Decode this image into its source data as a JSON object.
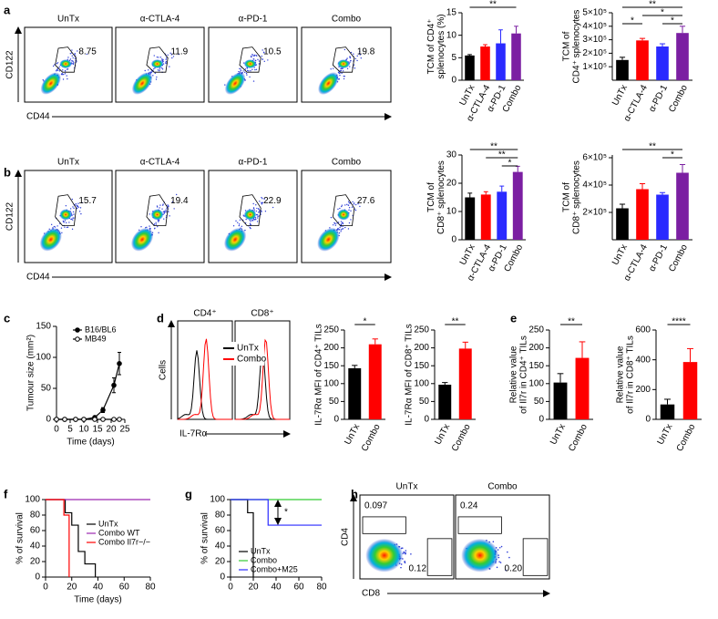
{
  "chart_data": [
    {
      "type": "flow",
      "panel": "a",
      "titles": [
        "UnTx",
        "α-CTLA-4",
        "α-PD-1",
        "Combo"
      ],
      "gates": [
        "8.75",
        "11.9",
        "10.5",
        "19.8"
      ],
      "ylabel": "CD122",
      "xlabel": "CD44"
    },
    {
      "type": "bar",
      "categories": [
        "UnTx",
        "α-CTLA-4",
        "α-PD-1",
        "Combo"
      ],
      "values": [
        5.5,
        7.5,
        8.2,
        10.4
      ],
      "errors": [
        0.2,
        0.4,
        3.0,
        1.6
      ],
      "colors": [
        "#000000",
        "#ff0000",
        "#2a2aff",
        "#7b1fa2"
      ],
      "ylim": [
        0,
        15
      ],
      "yticks": [
        0,
        5,
        10,
        15
      ],
      "ylabel": [
        "TCM of CD4⁺",
        "splenocytes (%)"
      ],
      "significance": [
        "**"
      ]
    },
    {
      "type": "bar",
      "categories": [
        "UnTx",
        "α-CTLA-4",
        "α-PD-1",
        "Combo"
      ],
      "values": [
        150000,
        295000,
        250000,
        350000
      ],
      "errors": [
        20000,
        15000,
        20000,
        50000
      ],
      "colors": [
        "#000000",
        "#ff0000",
        "#2a2aff",
        "#7b1fa2"
      ],
      "ylim": [
        0,
        500000
      ],
      "yticks": [
        {
          "value": 100000,
          "label": "1×10⁵"
        },
        {
          "value": 200000,
          "label": "2×10⁵"
        },
        {
          "value": 300000,
          "label": "3×10⁵"
        },
        {
          "value": 400000,
          "label": "4×10⁵"
        },
        {
          "value": 500000,
          "label": "5×10⁵"
        }
      ],
      "ylabel": [
        "TCM of",
        "CD4⁺ splenocytes"
      ],
      "significance": [
        "**",
        "*",
        "*",
        "*"
      ]
    },
    {
      "type": "flow",
      "panel": "b",
      "titles": [
        "UnTx",
        "α-CTLA-4",
        "α-PD-1",
        "Combo"
      ],
      "gates": [
        "15.7",
        "19.4",
        "22.9",
        "27.6"
      ],
      "ylabel": "CD122",
      "xlabel": "CD44"
    },
    {
      "type": "bar",
      "categories": [
        "UnTx",
        "α-CTLA-4",
        "α-PD-1",
        "Combo"
      ],
      "values": [
        15,
        16,
        17,
        24
      ],
      "errors": [
        1.5,
        1,
        2,
        2
      ],
      "colors": [
        "#000000",
        "#ff0000",
        "#2a2aff",
        "#7b1fa2"
      ],
      "ylim": [
        0,
        30
      ],
      "yticks": [
        0,
        10,
        20,
        30
      ],
      "ylabel": [
        "TCM of",
        "CD8⁺ splenocytes"
      ],
      "significance": [
        "**",
        "**",
        "*"
      ]
    },
    {
      "type": "bar",
      "categories": [
        "UnTx",
        "α-CTLA-4",
        "α-PD-1",
        "Combo"
      ],
      "values": [
        230000,
        370000,
        330000,
        490000
      ],
      "errors": [
        30000,
        40000,
        15000,
        60000
      ],
      "colors": [
        "#000000",
        "#ff0000",
        "#2a2aff",
        "#7b1fa2"
      ],
      "ylim": [
        0,
        620000
      ],
      "yticks": [
        {
          "value": 200000,
          "label": "2×10⁵"
        },
        {
          "value": 400000,
          "label": "4×10⁵"
        },
        {
          "value": 600000,
          "label": "6×10⁵"
        }
      ],
      "ylabel": [
        "TCM of",
        "CD8⁺ splenocytes"
      ],
      "significance": [
        "**",
        "*"
      ]
    },
    {
      "type": "line",
      "panel": "c",
      "x": [
        0,
        3,
        7,
        10,
        14,
        17,
        21,
        23
      ],
      "series": [
        {
          "name": "B16/BL6",
          "color": "#000000",
          "marker": "filled",
          "values": [
            0,
            0,
            0,
            0,
            3,
            15,
            55,
            90
          ],
          "errors": [
            0,
            0,
            0,
            0,
            1,
            4,
            12,
            18
          ]
        },
        {
          "name": "MB49",
          "color": "#000000",
          "marker": "open",
          "values": [
            0,
            0,
            0,
            0,
            0,
            0,
            0,
            0
          ],
          "errors": [
            0,
            0,
            0,
            0,
            0,
            0,
            0,
            0
          ]
        }
      ],
      "xlim": [
        0,
        25
      ],
      "xticks": [
        0,
        5,
        10,
        15,
        20,
        25
      ],
      "ylim": [
        0,
        150
      ],
      "yticks": [
        0,
        50,
        100,
        150
      ],
      "xlabel": "Time (days)",
      "ylabel": "Tumour size (mm²)"
    },
    {
      "type": "flow-histogram",
      "panel": "d",
      "titles": [
        "CD4⁺",
        "CD8⁺"
      ],
      "ylabel": "Cells",
      "xlabel": "IL-7Rα",
      "series": [
        {
          "name": "UnTx",
          "color": "#000000"
        },
        {
          "name": "Combo",
          "color": "#ff0000"
        }
      ]
    },
    {
      "type": "bar",
      "categories": [
        "UnTx",
        "Combo"
      ],
      "values": [
        143,
        210
      ],
      "errors": [
        8,
        15
      ],
      "colors": [
        "#000000",
        "#ff0000"
      ],
      "ylim": [
        0,
        250
      ],
      "yticks": [
        0,
        50,
        100,
        150,
        200,
        250
      ],
      "ylabel": [
        "IL-7Rα MFI of CD4⁺ TILs"
      ],
      "significance": [
        "*"
      ]
    },
    {
      "type": "bar",
      "categories": [
        "UnTx",
        "Combo"
      ],
      "values": [
        97,
        198
      ],
      "errors": [
        6,
        18
      ],
      "colors": [
        "#000000",
        "#ff0000"
      ],
      "ylim": [
        0,
        250
      ],
      "yticks": [
        0,
        50,
        100,
        150,
        200,
        250
      ],
      "ylabel": [
        "IL-7Rα MFI of CD8⁺ TILs"
      ],
      "significance": [
        "**"
      ]
    },
    {
      "type": "bar",
      "panel": "e",
      "categories": [
        "UnTx",
        "Combo"
      ],
      "values": [
        103,
        172
      ],
      "errors": [
        25,
        45
      ],
      "colors": [
        "#000000",
        "#ff0000"
      ],
      "ylim": [
        0,
        250
      ],
      "yticks": [
        0,
        50,
        100,
        150,
        200,
        250
      ],
      "ylabel": [
        "Relative value",
        "of Il7r in CD4⁺ TILs"
      ],
      "significance": [
        "**"
      ]
    },
    {
      "type": "bar",
      "categories": [
        "UnTx",
        "Combo"
      ],
      "values": [
        100,
        385
      ],
      "errors": [
        35,
        90
      ],
      "colors": [
        "#000000",
        "#ff0000"
      ],
      "ylim": [
        0,
        600
      ],
      "yticks": [
        0,
        200,
        400,
        600
      ],
      "ylabel": [
        "Relative value",
        "of Il7r in CD8⁺ TILs"
      ],
      "significance": [
        "****"
      ]
    },
    {
      "type": "survival",
      "panel": "f",
      "series": [
        {
          "name": "UnTx",
          "color": "#000000",
          "x": [
            0,
            15,
            20,
            25,
            30,
            38
          ],
          "values": [
            100,
            83,
            67,
            33,
            17,
            0
          ]
        },
        {
          "name": "Combo WT",
          "color": "#9c27b0",
          "x": [
            0,
            80
          ],
          "values": [
            100,
            100
          ]
        },
        {
          "name": "Combo Il7r−/−",
          "color": "#ff0000",
          "x": [
            0,
            14,
            18
          ],
          "values": [
            100,
            80,
            0
          ]
        }
      ],
      "xlim": [
        0,
        80
      ],
      "xticks": [
        0,
        20,
        40,
        60,
        80
      ],
      "ylim": [
        0,
        100
      ],
      "yticks": [
        0,
        20,
        40,
        60,
        80,
        100
      ],
      "xlabel": "Time (days)",
      "ylabel": "% of survival"
    },
    {
      "type": "survival",
      "panel": "g",
      "series": [
        {
          "name": "UnTx",
          "color": "#000000",
          "x": [
            0,
            15,
            20
          ],
          "values": [
            100,
            83,
            0
          ]
        },
        {
          "name": "Combo",
          "color": "#33cc33",
          "x": [
            0,
            80
          ],
          "values": [
            100,
            100
          ]
        },
        {
          "name": "Combo+M25",
          "color": "#2a2aff",
          "x": [
            0,
            33,
            80
          ],
          "values": [
            100,
            67,
            67
          ]
        }
      ],
      "xlim": [
        0,
        80
      ],
      "xticks": [
        0,
        20,
        40,
        60,
        80
      ],
      "ylim": [
        0,
        100
      ],
      "yticks": [
        0,
        20,
        40,
        60,
        80,
        100
      ],
      "ylabel": "% of survival",
      "annotation": "*"
    },
    {
      "type": "flow",
      "panel": "h",
      "titles": [
        "UnTx",
        "Combo"
      ],
      "gates": [
        [
          "0.097",
          "0.12"
        ],
        [
          "0.24",
          "0.20"
        ]
      ],
      "ylabel": "CD4",
      "xlabel": "CD8"
    }
  ]
}
